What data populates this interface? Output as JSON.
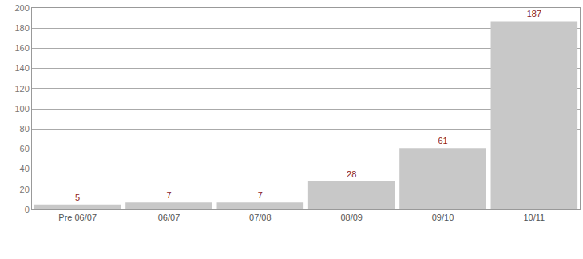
{
  "chart_data": {
    "type": "bar",
    "categories": [
      "Pre 06/07",
      "06/07",
      "07/08",
      "08/09",
      "09/10",
      "10/11"
    ],
    "values": [
      5,
      7,
      7,
      28,
      61,
      187
    ],
    "color": "#c8c8c8",
    "ylim": [
      0,
      200
    ],
    "yticks": [
      0,
      20,
      40,
      60,
      80,
      100,
      120,
      140,
      160,
      180,
      200
    ],
    "grid": true,
    "data_labels": true
  }
}
